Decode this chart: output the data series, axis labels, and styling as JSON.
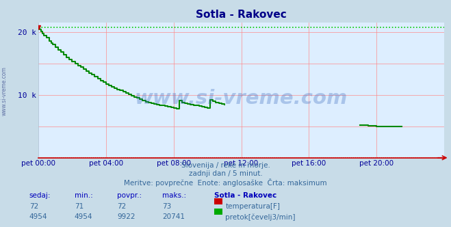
{
  "title": "Sotla - Rakovec",
  "bg_color": "#c8dce8",
  "plot_bg_color": "#ddeeff",
  "grid_color": "#ffaaaa",
  "title_color": "#000088",
  "tick_color": "#000099",
  "flow_color": "#008800",
  "temp_color": "#cc0000",
  "max_flow": 20741,
  "min_flow": 4954,
  "avg_flow": 9922,
  "max_temp": 73,
  "min_temp": 71,
  "avg_temp": 72,
  "cur_temp": 72,
  "cur_flow": 4954,
  "ylim_max": 21500,
  "watermark": "www.si-vreme.com",
  "watermark_color": "#3366bb",
  "info_line1": "Slovenija / reke in morje.",
  "info_line2": "zadnji dan / 5 minut.",
  "info_line3": "Meritve: povprečne  Enote: anglosaške  Črta: maksimum",
  "label_sedaj": "sedaj:",
  "label_min": "min.:",
  "label_povpr": "povpr.:",
  "label_maks": "maks.:",
  "label_station": "Sotla - Rakovec",
  "label_temp": "temperatura[F]",
  "label_flow": "pretok[čevelj3/min]",
  "sidebar_color": "#334488",
  "flow_segment1_times": [
    0.0,
    0.083,
    0.167,
    0.25,
    0.333,
    0.5,
    0.667,
    0.75,
    0.833,
    1.0,
    1.167,
    1.333,
    1.5,
    1.667,
    1.833,
    2.0,
    2.167,
    2.333,
    2.5,
    2.667,
    2.833,
    3.0,
    3.167,
    3.333,
    3.5,
    3.667,
    3.833,
    4.0,
    4.167,
    4.333,
    4.5,
    4.667,
    4.833,
    5.0,
    5.167,
    5.333,
    5.5,
    5.667,
    5.833,
    6.0,
    6.167,
    6.333,
    6.5,
    6.667,
    6.833,
    7.0,
    7.167,
    7.333,
    7.5,
    7.667,
    7.833,
    8.0,
    8.167,
    8.333,
    8.5,
    8.667,
    8.833,
    9.0,
    9.167,
    9.333,
    9.5,
    9.667,
    9.833,
    10.0,
    10.167,
    10.333,
    10.5,
    10.667,
    10.833,
    11.0
  ],
  "flow_segment1_vals": [
    20741,
    20400,
    20100,
    19800,
    19500,
    19100,
    18600,
    18300,
    18000,
    17600,
    17200,
    16800,
    16400,
    16000,
    15600,
    15300,
    15000,
    14700,
    14400,
    14100,
    13800,
    13500,
    13200,
    12900,
    12600,
    12300,
    12000,
    11700,
    11500,
    11300,
    11100,
    10900,
    10700,
    10500,
    10300,
    10100,
    9900,
    9700,
    9500,
    9300,
    9100,
    8950,
    8800,
    8700,
    8600,
    8500,
    8400,
    8300,
    8200,
    8100,
    8000,
    7900,
    7850,
    9100,
    8800,
    8700,
    8600,
    8500,
    8400,
    8300,
    8200,
    8100,
    8000,
    7900,
    9200,
    9000,
    8800,
    8700,
    8600,
    8500
  ],
  "flow_segment2_times": [
    19.0,
    19.5,
    20.0,
    20.5,
    21.0,
    21.5
  ],
  "flow_segment2_vals": [
    5200,
    5100,
    5000,
    4980,
    4960,
    4954
  ]
}
